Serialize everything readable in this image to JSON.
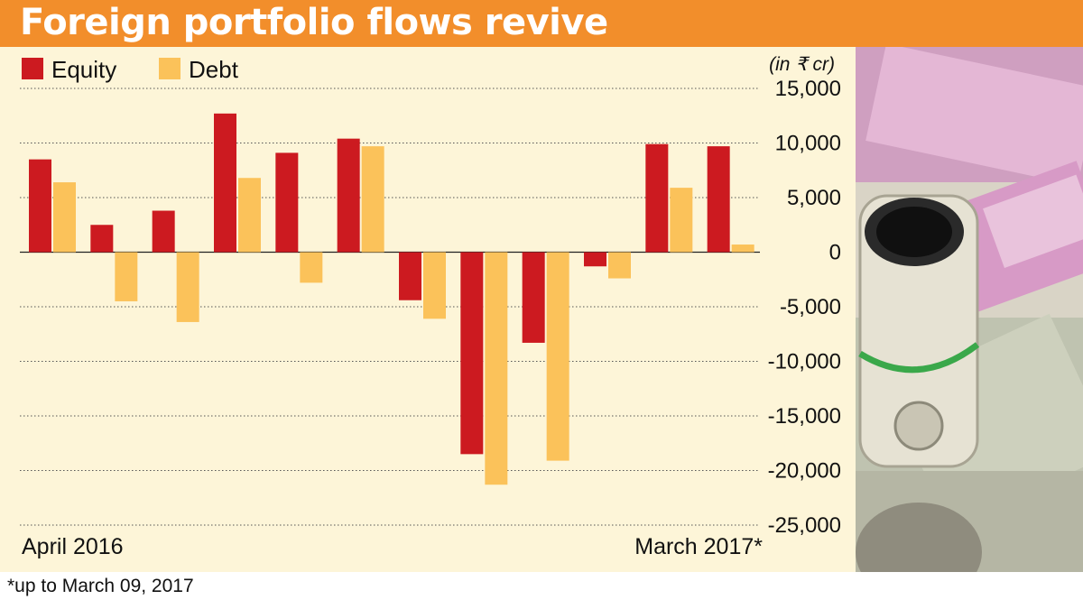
{
  "title": "Foreign portfolio flows revive",
  "footnote": "*up to March 09, 2017",
  "colors": {
    "equity": "#cc1a20",
    "debt": "#fbc25a",
    "title_bg": "#f28e2b",
    "panel_bg": "#fdf5d8"
  },
  "photo_icon": "rupee-notes-photo",
  "chart_data": {
    "type": "bar",
    "unit": "(in ₹ cr)",
    "x_start_label": "April 2016",
    "x_end_label": "March 2017*",
    "ylim": [
      -25000,
      15000
    ],
    "yticks": [
      15000,
      10000,
      5000,
      0,
      -5000,
      -10000,
      -15000,
      -20000,
      -25000
    ],
    "ytick_labels": [
      "15,000",
      "10,000",
      "5,000",
      "0",
      "-5,000",
      "-10,000",
      "-15,000",
      "-20,000",
      "-25,000"
    ],
    "grid": true,
    "legend_position": "top-left",
    "series": [
      {
        "name": "Equity",
        "color": "#cc1a20",
        "values": [
          8500,
          2500,
          3800,
          12700,
          9100,
          10400,
          -4400,
          -18500,
          -8300,
          -1300,
          9900,
          9700
        ]
      },
      {
        "name": "Debt",
        "color": "#fbc25a",
        "values": [
          6400,
          -4500,
          -6400,
          6800,
          -2800,
          9700,
          -6100,
          -21300,
          -19100,
          -2400,
          5900,
          700
        ]
      }
    ]
  }
}
